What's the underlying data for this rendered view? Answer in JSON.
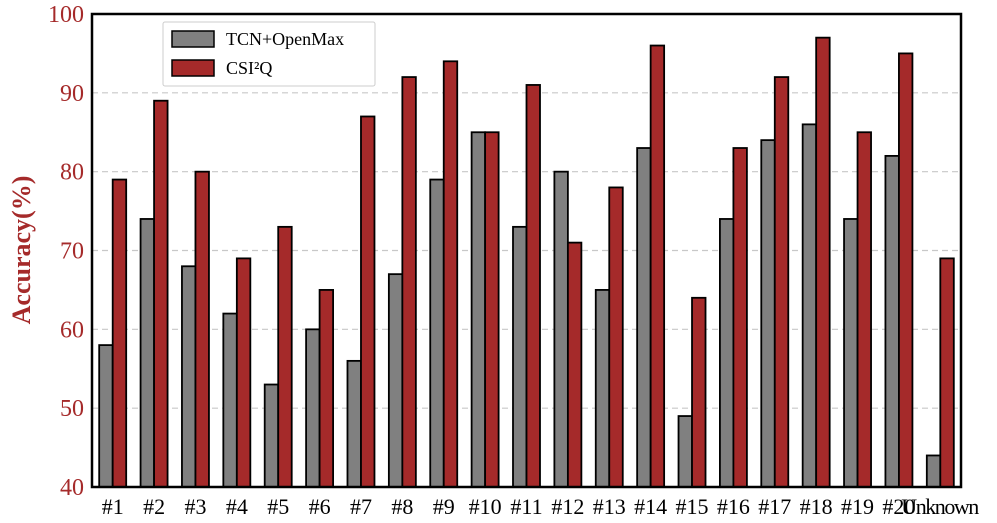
{
  "chart_data": {
    "type": "bar",
    "categories": [
      "#1",
      "#2",
      "#3",
      "#4",
      "#5",
      "#6",
      "#7",
      "#8",
      "#9",
      "#10",
      "#11",
      "#12",
      "#13",
      "#14",
      "#15",
      "#16",
      "#17",
      "#18",
      "#19",
      "#20",
      "Unknown"
    ],
    "series": [
      {
        "name": "TCN+OpenMax",
        "color": "#808080",
        "values": [
          58,
          74,
          68,
          62,
          53,
          60,
          56,
          67,
          79,
          85,
          73,
          80,
          65,
          83,
          49,
          74,
          84,
          86,
          74,
          82,
          44
        ]
      },
      {
        "name": "CSI²Q",
        "color": "#a52a2a",
        "values": [
          79,
          89,
          80,
          69,
          73,
          65,
          87,
          92,
          94,
          85,
          91,
          71,
          78,
          96,
          64,
          83,
          92,
          97,
          85,
          95,
          69
        ]
      }
    ],
    "title": "",
    "xlabel": "",
    "ylabel": "Accuracy(%)",
    "ylim": [
      40,
      100
    ],
    "yticks": [
      "40",
      "50",
      "60",
      "70",
      "80",
      "90",
      "100"
    ],
    "grid": "y-dashed",
    "legend_position": "top-left"
  }
}
